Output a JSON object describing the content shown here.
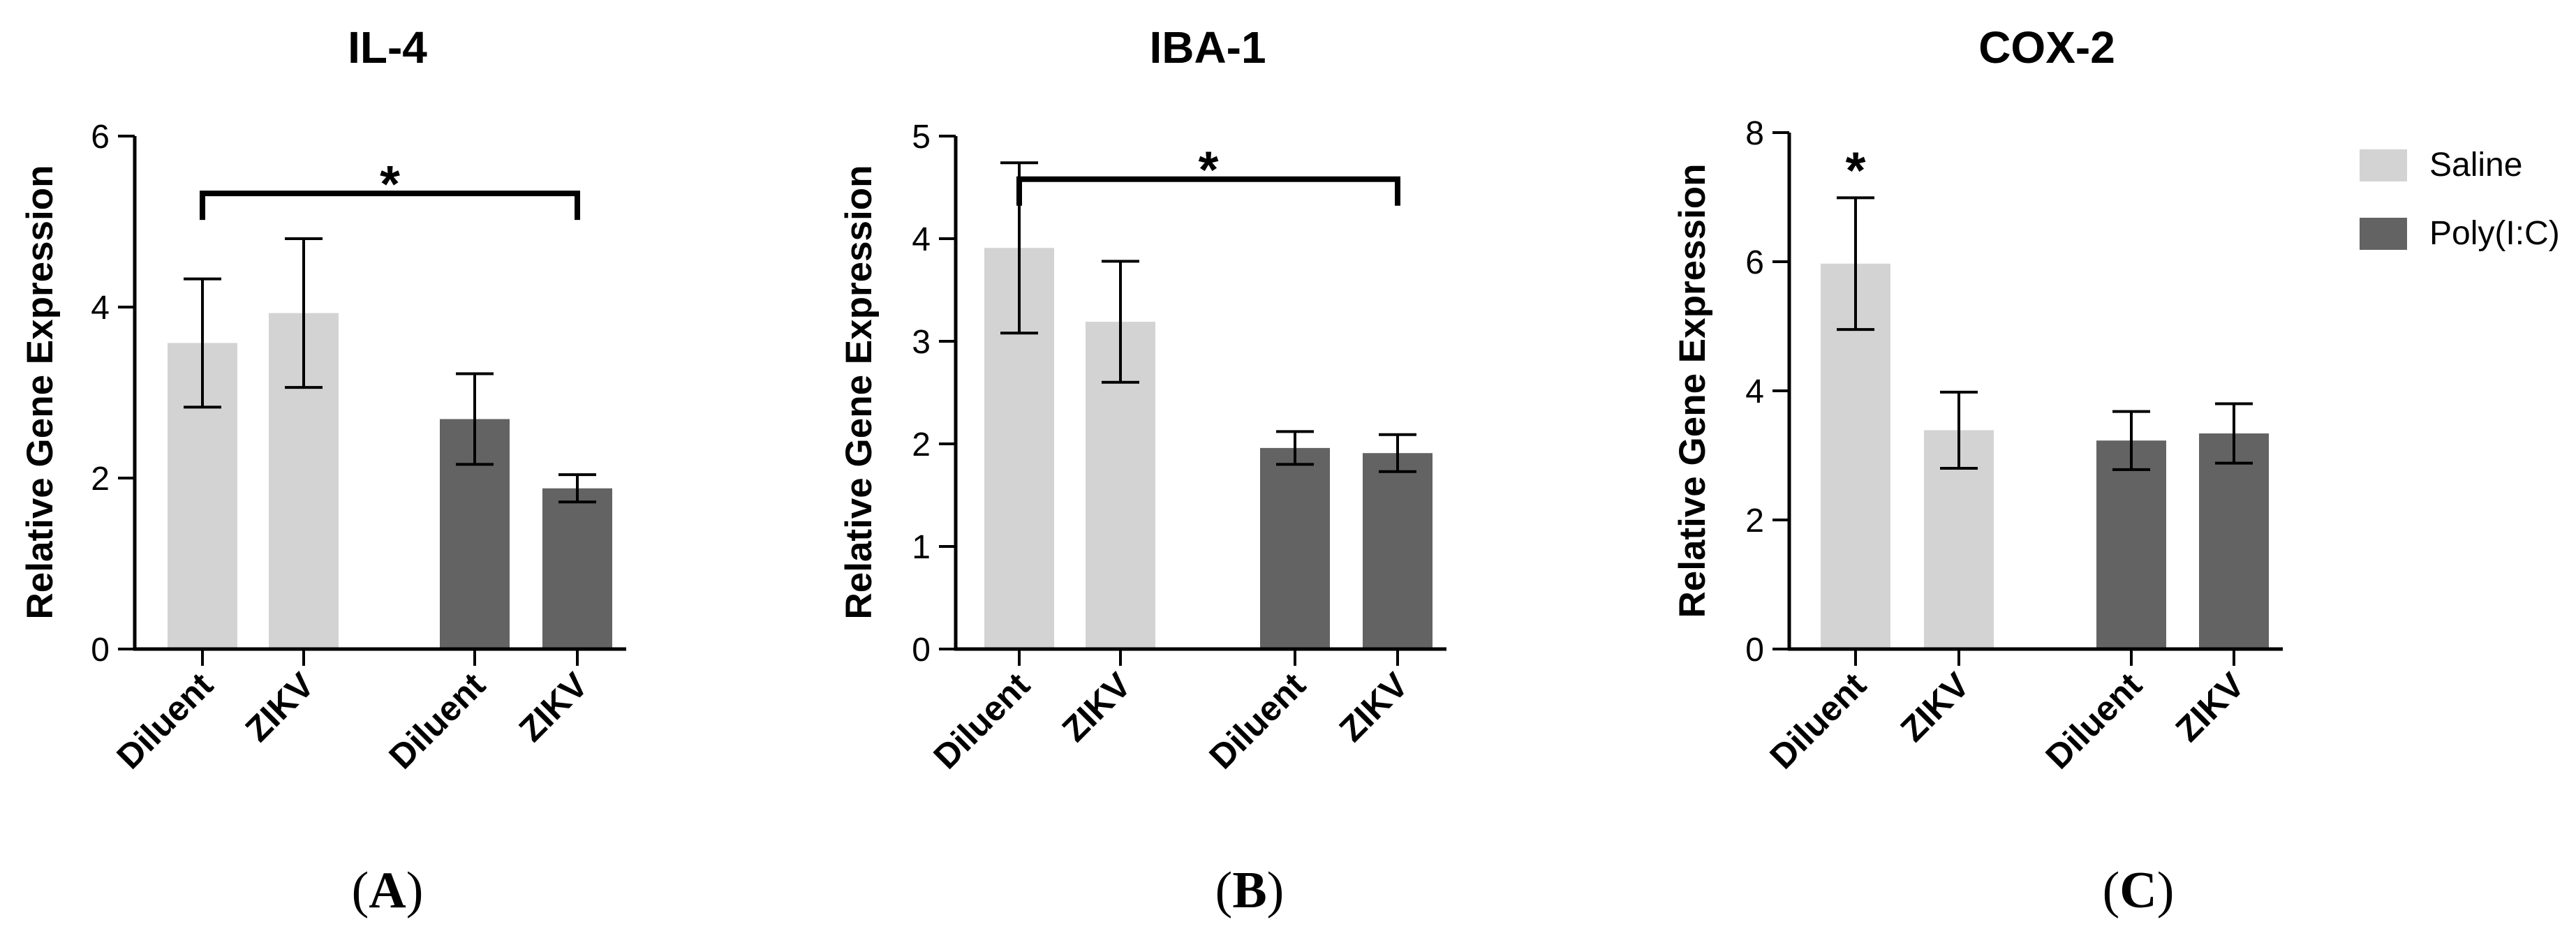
{
  "colors": {
    "saline": "#d3d3d3",
    "polyic": "#636363",
    "axis": "#000000"
  },
  "legend": {
    "items": [
      {
        "label": "Saline",
        "group": "saline"
      },
      {
        "label": "Poly(I:C)",
        "group": "polyic"
      }
    ]
  },
  "chart_data": [
    {
      "type": "bar",
      "title": "IL-4",
      "panel_label": "A",
      "ylabel": "Relative Gene Expression",
      "xlabel": "",
      "ylim": [
        0,
        6
      ],
      "yticks": [
        0,
        2,
        4,
        6
      ],
      "categories": [
        "Diluent",
        "ZIKV",
        "Diluent",
        "ZIKV"
      ],
      "bars": [
        {
          "category": "Diluent",
          "group": "saline",
          "value": 3.58,
          "error": 0.75
        },
        {
          "category": "ZIKV",
          "group": "saline",
          "value": 3.93,
          "error": 0.87
        },
        {
          "category": "Diluent",
          "group": "polyic",
          "value": 2.69,
          "error": 0.53
        },
        {
          "category": "ZIKV",
          "group": "polyic",
          "value": 1.88,
          "error": 0.16
        }
      ],
      "significance": [
        {
          "type": "bracket",
          "from": 0,
          "to": 3,
          "label": "*",
          "y": 5.33
        }
      ]
    },
    {
      "type": "bar",
      "title": "IBA-1",
      "panel_label": "B",
      "ylabel": "Relative Gene Expression",
      "xlabel": "",
      "ylim": [
        0,
        5
      ],
      "yticks": [
        0,
        1,
        2,
        3,
        4,
        5
      ],
      "categories": [
        "Diluent",
        "ZIKV",
        "Diluent",
        "ZIKV"
      ],
      "bars": [
        {
          "category": "Diluent",
          "group": "saline",
          "value": 3.91,
          "error": 0.83
        },
        {
          "category": "ZIKV",
          "group": "saline",
          "value": 3.19,
          "error": 0.59
        },
        {
          "category": "Diluent",
          "group": "polyic",
          "value": 1.96,
          "error": 0.16
        },
        {
          "category": "ZIKV",
          "group": "polyic",
          "value": 1.91,
          "error": 0.18
        }
      ],
      "significance": [
        {
          "type": "bracket",
          "from": 0,
          "to": 3,
          "label": "*",
          "y": 4.58
        }
      ]
    },
    {
      "type": "bar",
      "title": "COX-2",
      "panel_label": "C",
      "ylabel": "Relative Gene Expression",
      "xlabel": "",
      "ylim": [
        0,
        8
      ],
      "yticks": [
        0,
        2,
        4,
        6,
        8
      ],
      "categories": [
        "Diluent",
        "ZIKV",
        "Diluent",
        "ZIKV"
      ],
      "bars": [
        {
          "category": "Diluent",
          "group": "saline",
          "value": 5.97,
          "error": 1.02
        },
        {
          "category": "ZIKV",
          "group": "saline",
          "value": 3.39,
          "error": 0.59
        },
        {
          "category": "Diluent",
          "group": "polyic",
          "value": 3.23,
          "error": 0.45
        },
        {
          "category": "ZIKV",
          "group": "polyic",
          "value": 3.34,
          "error": 0.46
        }
      ],
      "significance": [
        {
          "type": "mark",
          "over": 0,
          "label": "*"
        }
      ]
    }
  ]
}
